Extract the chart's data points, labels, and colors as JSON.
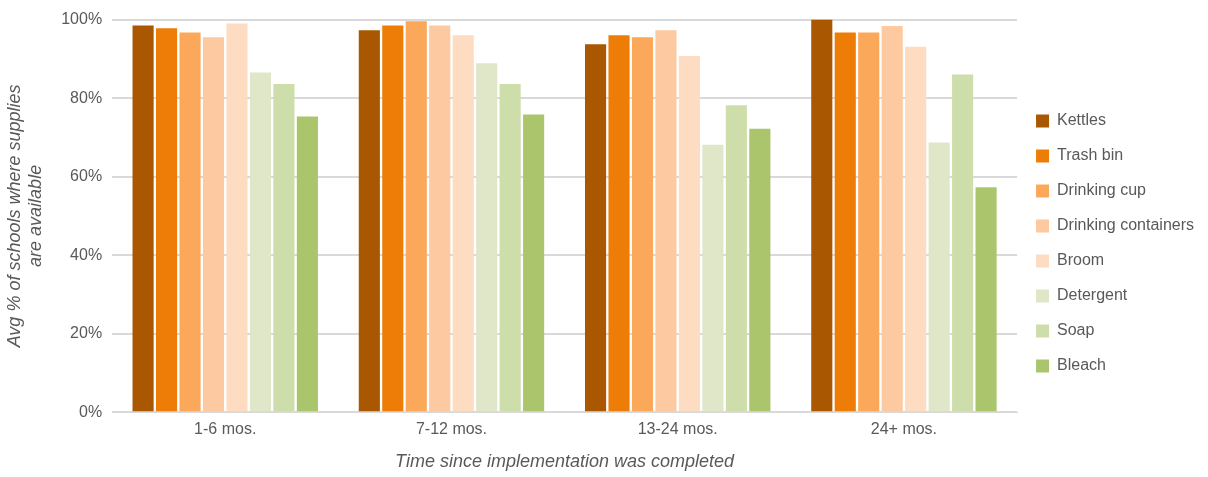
{
  "chart_data": {
    "type": "bar",
    "xlabel": "Time since implementation was completed",
    "ylabel": "Avg % of schools where supplies are available",
    "categories": [
      "1-6 mos.",
      "7-12 mos.",
      "13-24 mos.",
      "24+ mos."
    ],
    "ylim": [
      0,
      100
    ],
    "yticks": [
      {
        "value": 0,
        "label": "0%"
      },
      {
        "value": 20,
        "label": "20%"
      },
      {
        "value": 40,
        "label": "40%"
      },
      {
        "value": 60,
        "label": "60%"
      },
      {
        "value": 80,
        "label": "80%"
      },
      {
        "value": 100,
        "label": "100%"
      }
    ],
    "grid": "y",
    "legend": "right",
    "series": [
      {
        "name": "Kettles",
        "color": "#a95700",
        "values": [
          98.5,
          97.3,
          93.7,
          100
        ]
      },
      {
        "name": "Trash bin",
        "color": "#ed7d07",
        "values": [
          97.8,
          98.5,
          96,
          96.7
        ]
      },
      {
        "name": "Drinking cup",
        "color": "#fba85a",
        "values": [
          96.7,
          99.6,
          95.5,
          96.7
        ]
      },
      {
        "name": "Drinking containers",
        "color": "#fcc9a0",
        "values": [
          95.5,
          98.5,
          97.3,
          98.4
        ]
      },
      {
        "name": "Broom",
        "color": "#fddcc2",
        "values": [
          99,
          96,
          90.7,
          93.1
        ]
      },
      {
        "name": "Detergent",
        "color": "#dfe7c8",
        "values": [
          86.5,
          88.9,
          68.1,
          68.7
        ]
      },
      {
        "name": "Soap",
        "color": "#cddeaa",
        "values": [
          83.6,
          83.6,
          78.2,
          86
        ]
      },
      {
        "name": "Bleach",
        "color": "#abc56c",
        "values": [
          75.3,
          75.8,
          72.2,
          57.3
        ]
      }
    ]
  }
}
